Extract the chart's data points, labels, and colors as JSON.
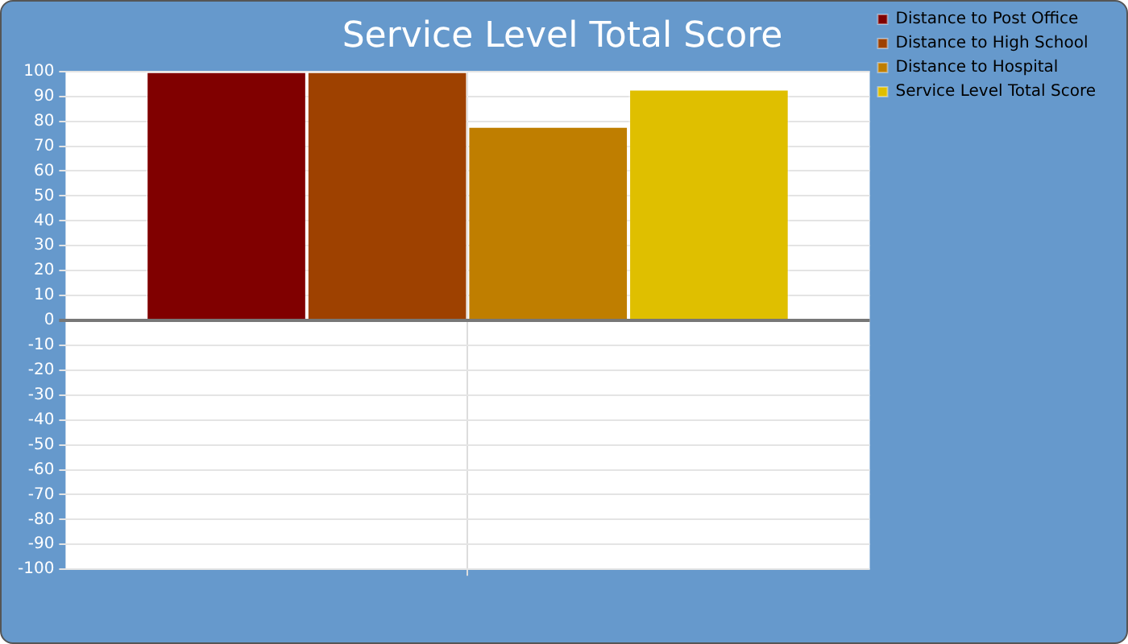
{
  "chart_data": {
    "type": "bar",
    "title": "Service Level Total Score",
    "categories": [
      null
    ],
    "series": [
      {
        "name": "Distance to Post Office",
        "color": "#800000",
        "values": [
          100
        ]
      },
      {
        "name": "Distance to High School",
        "color": "#9e4100",
        "values": [
          100
        ]
      },
      {
        "name": "Distance to Hospital",
        "color": "#bf7e00",
        "values": [
          78
        ]
      },
      {
        "name": "Service Level Total Score",
        "color": "#dfbf00",
        "values": [
          93
        ]
      }
    ],
    "ylim": [
      -100,
      100
    ],
    "yticks": [
      -100,
      -90,
      -80,
      -70,
      -60,
      -50,
      -40,
      -30,
      -20,
      -10,
      0,
      10,
      20,
      30,
      40,
      50,
      60,
      70,
      80,
      90,
      100
    ],
    "grid": true,
    "legend": "top right"
  }
}
